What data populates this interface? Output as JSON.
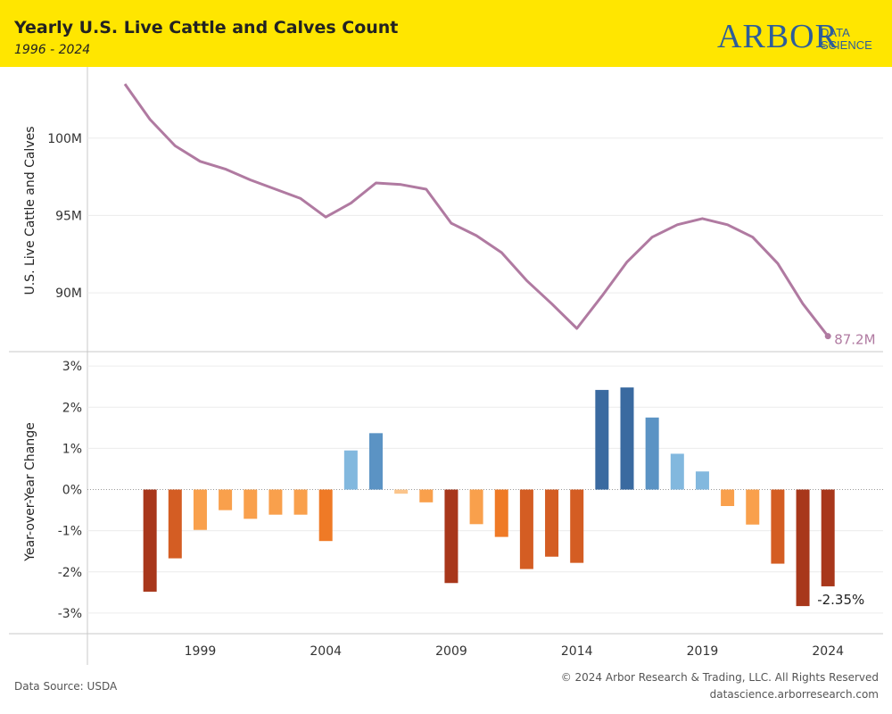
{
  "header": {
    "title": "Yearly U.S. Live Cattle and Calves Count",
    "subtitle": "1996 - 2024",
    "logo_main": "ARBOR",
    "logo_sub1": "DATA",
    "logo_sub2": "SCIENCE",
    "background_color": "#ffe600",
    "logo_color": "#2d5d9a"
  },
  "footer": {
    "source": "Data Source: USDA",
    "copyright": "© 2024 Arbor Research & Trading, LLC. All Rights Reserved",
    "url": "datascience.arborresearch.com"
  },
  "chart_data": [
    {
      "type": "line",
      "ylabel": "U.S. Live Cattle and Calves",
      "x": [
        1996,
        1997,
        1998,
        1999,
        2000,
        2001,
        2002,
        2003,
        2004,
        2005,
        2006,
        2007,
        2008,
        2009,
        2010,
        2011,
        2012,
        2013,
        2014,
        2015,
        2016,
        2017,
        2018,
        2019,
        2020,
        2021,
        2022,
        2023,
        2024
      ],
      "values_millions": [
        103.5,
        101.2,
        99.5,
        98.5,
        98.0,
        97.3,
        96.7,
        96.1,
        94.9,
        95.8,
        97.1,
        97.0,
        96.7,
        94.5,
        93.7,
        92.6,
        90.8,
        89.3,
        87.7,
        89.8,
        92.0,
        93.6,
        94.4,
        94.8,
        94.4,
        93.6,
        91.9,
        89.3,
        87.2
      ],
      "y_ticks": [
        {
          "value": 90,
          "label": "90M"
        },
        {
          "value": 95,
          "label": "95M"
        },
        {
          "value": 100,
          "label": "100M"
        }
      ],
      "ylim": [
        86.2,
        104.6
      ],
      "end_label": "87.2M",
      "color": "#b07aa1",
      "grid": true
    },
    {
      "type": "bar",
      "ylabel": "Year-over-Year Change",
      "x": [
        1997,
        1998,
        1999,
        2000,
        2001,
        2002,
        2003,
        2004,
        2005,
        2006,
        2007,
        2008,
        2009,
        2010,
        2011,
        2012,
        2013,
        2014,
        2015,
        2016,
        2017,
        2018,
        2019,
        2020,
        2021,
        2022,
        2023,
        2024
      ],
      "values_percent": [
        -2.48,
        -1.67,
        -0.98,
        -0.5,
        -0.71,
        -0.61,
        -0.61,
        -1.25,
        0.95,
        1.37,
        -0.1,
        -0.31,
        -2.27,
        -0.84,
        -1.15,
        -1.93,
        -1.63,
        -1.78,
        2.42,
        2.48,
        1.75,
        0.87,
        0.44,
        -0.4,
        -0.85,
        -1.8,
        -2.83,
        -2.35
      ],
      "y_ticks": [
        {
          "value": -3,
          "label": "-3%"
        },
        {
          "value": -2,
          "label": "-2%"
        },
        {
          "value": -1,
          "label": "-1%"
        },
        {
          "value": 0,
          "label": "0%"
        },
        {
          "value": 1,
          "label": "1%"
        },
        {
          "value": 2,
          "label": "2%"
        },
        {
          "value": 3,
          "label": "3%"
        }
      ],
      "ylim": [
        -3.5,
        3.35
      ],
      "end_label": "-2.35%",
      "grid": true,
      "positive_colors": [
        "#bcd9ec",
        "#82b8de",
        "#5b93c4",
        "#3a6aa0"
      ],
      "negative_colors": [
        "#fbc58c",
        "#f9a04c",
        "#ef7a26",
        "#d45d23",
        "#a8371b"
      ]
    }
  ],
  "x_axis": {
    "ticks": [
      {
        "value": 1999,
        "label": "1999"
      },
      {
        "value": 2004,
        "label": "2004"
      },
      {
        "value": 2009,
        "label": "2009"
      },
      {
        "value": 2014,
        "label": "2014"
      },
      {
        "value": 2019,
        "label": "2019"
      },
      {
        "value": 2024,
        "label": "2024"
      }
    ]
  }
}
